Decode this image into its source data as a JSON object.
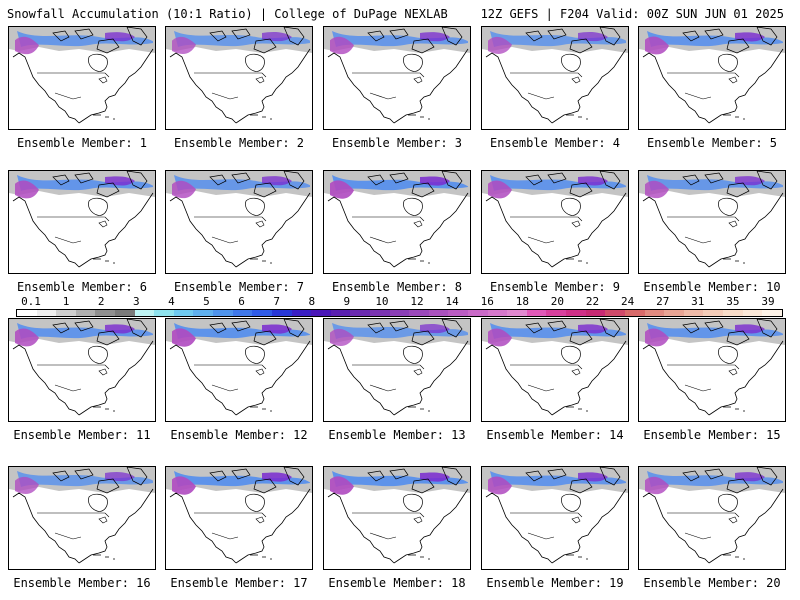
{
  "header": {
    "left_title": "Snowfall Accumulation (10:1 Ratio) | College of DuPage NEXLAB",
    "right_title": "12Z GEFS | F204 Valid: 00Z SUN JUN 01 2025"
  },
  "colorbar": {
    "tick_labels": [
      "0.1",
      "1",
      "2",
      "3",
      "4",
      "5",
      "6",
      "7",
      "8",
      "9",
      "10",
      "12",
      "14",
      "16",
      "18",
      "20",
      "22",
      "24",
      "27",
      "31",
      "35",
      "39"
    ],
    "colors": [
      "#ffffff",
      "#eeeeee",
      "#cfcfcf",
      "#b0b0b0",
      "#909090",
      "#7a7a7a",
      "#bff4f4",
      "#8fe3ee",
      "#6fcaf0",
      "#5fb0ee",
      "#4f94ec",
      "#3f78ea",
      "#2f5ce8",
      "#2838d8",
      "#3a1fc4",
      "#4a16b8",
      "#5a20b0",
      "#6a2ab0",
      "#7a34b2",
      "#8a3eb6",
      "#9a48ba",
      "#aa52be",
      "#ba5cc2",
      "#ca6ac8",
      "#d678cc",
      "#e088d0",
      "#e058b8",
      "#d8409e",
      "#d03088",
      "#c82a74",
      "#d04a6a",
      "#d86a6a",
      "#e08a80",
      "#e8a494",
      "#efbaa8",
      "#f4ccb8",
      "#f8dcc8",
      "#fbe8d8",
      "#fdf3e8"
    ]
  },
  "members": [
    {
      "label": "Ensemble Member: 1",
      "intensity": 0.7
    },
    {
      "label": "Ensemble Member: 2",
      "intensity": 0.6
    },
    {
      "label": "Ensemble Member: 3",
      "intensity": 0.7
    },
    {
      "label": "Ensemble Member: 4",
      "intensity": 0.6
    },
    {
      "label": "Ensemble Member: 5",
      "intensity": 0.8
    },
    {
      "label": "Ensemble Member: 6",
      "intensity": 0.8
    },
    {
      "label": "Ensemble Member: 7",
      "intensity": 0.7
    },
    {
      "label": "Ensemble Member: 8",
      "intensity": 0.9
    },
    {
      "label": "Ensemble Member: 9",
      "intensity": 0.8
    },
    {
      "label": "Ensemble Member: 10",
      "intensity": 0.7
    },
    {
      "label": "Ensemble Member: 11",
      "intensity": 0.8
    },
    {
      "label": "Ensemble Member: 12",
      "intensity": 0.9
    },
    {
      "label": "Ensemble Member: 13",
      "intensity": 0.6
    },
    {
      "label": "Ensemble Member: 14",
      "intensity": 0.8
    },
    {
      "label": "Ensemble Member: 15",
      "intensity": 0.8
    },
    {
      "label": "Ensemble Member: 16",
      "intensity": 0.6
    },
    {
      "label": "Ensemble Member: 17",
      "intensity": 0.9
    },
    {
      "label": "Ensemble Member: 18",
      "intensity": 0.9
    },
    {
      "label": "Ensemble Member: 19",
      "intensity": 0.8
    },
    {
      "label": "Ensemble Member: 20",
      "intensity": 0.7
    }
  ]
}
